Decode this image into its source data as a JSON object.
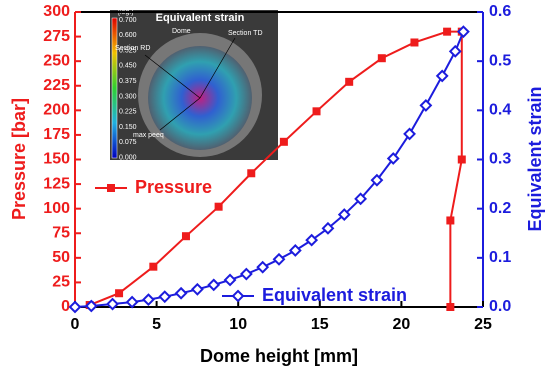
{
  "chart_data": {
    "type": "line",
    "x_label": "Dome height [mm]",
    "y_label": "Pressure [bar]",
    "y2_label": "Equivalent strain",
    "xlim": [
      0,
      25
    ],
    "xticks": [
      0,
      5,
      10,
      15,
      20,
      25
    ],
    "ylim": [
      0,
      300
    ],
    "yticks": [
      0,
      25,
      50,
      75,
      100,
      125,
      150,
      175,
      200,
      225,
      250,
      275,
      300
    ],
    "y2lim": [
      0,
      0.6
    ],
    "y2ticks": [
      {
        "value": 0,
        "label": "0.0"
      },
      0.1,
      0.2,
      0.3,
      0.4,
      0.5,
      0.6
    ],
    "series": [
      {
        "name": "Pressure",
        "color": "#ee1c1c",
        "marker": "square",
        "x": [
          0.9,
          2.7,
          4.8,
          6.8,
          8.8,
          10.8,
          12.8,
          14.8,
          16.8,
          18.8,
          20.8,
          22.8,
          23.7,
          23.7,
          23.0,
          23.0
        ],
        "values": [
          2,
          14,
          41,
          72,
          102,
          136,
          168,
          199,
          229,
          253,
          269,
          280,
          280,
          150,
          88,
          0
        ]
      },
      {
        "name": "Equivalent strain",
        "color": "#1c1cdd",
        "marker": "diamond",
        "axis": "y2",
        "x": [
          0,
          1,
          2.3,
          3.5,
          4.5,
          5.5,
          6.5,
          7.5,
          8.5,
          9.5,
          10.5,
          11.5,
          12.5,
          13.5,
          14.5,
          15.5,
          16.5,
          17.5,
          18.5,
          19.5,
          20.5,
          21.5,
          22.5,
          23.3,
          23.8
        ],
        "values": [
          0,
          0.002,
          0.006,
          0.01,
          0.015,
          0.021,
          0.028,
          0.036,
          0.045,
          0.055,
          0.067,
          0.081,
          0.097,
          0.115,
          0.136,
          0.16,
          0.188,
          0.22,
          0.258,
          0.302,
          0.352,
          0.41,
          0.47,
          0.52,
          0.56
        ]
      }
    ]
  },
  "inset": {
    "title": "Equivalent strain",
    "scale": "[log.]",
    "colorbar_labels": [
      "0.700",
      "0.600",
      "0.525",
      "0.450",
      "0.375",
      "0.300",
      "0.225",
      "0.150",
      "0.075",
      "0.000"
    ],
    "labels": [
      "Dome",
      "Section RD",
      "Section TD",
      "max peeq"
    ]
  }
}
